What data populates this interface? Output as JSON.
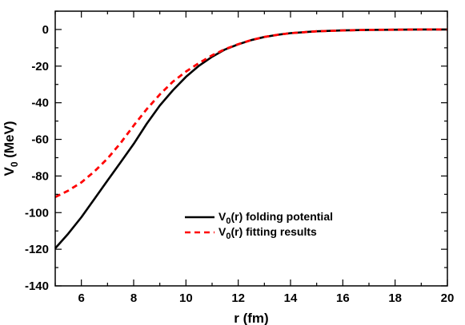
{
  "chart_data": {
    "type": "line",
    "xlabel": "r (fm)",
    "ylabel": {
      "base": "V",
      "sub": "0",
      "rest": " (MeV)"
    },
    "xlim": [
      5,
      20
    ],
    "ylim": [
      -140,
      10
    ],
    "xticks": [
      6,
      8,
      10,
      12,
      14,
      16,
      18,
      20
    ],
    "xtick_labels": [
      "6",
      "8",
      "10",
      "12",
      "14",
      "16",
      "18",
      "20"
    ],
    "yticks": [
      0,
      -20,
      -40,
      -60,
      -80,
      -100,
      -120,
      -140
    ],
    "ytick_labels": [
      "0",
      "-20",
      "-40",
      "-60",
      "-80",
      "-100",
      "-120",
      "-140"
    ],
    "grid": false,
    "legend_position": "lower-right",
    "series": [
      {
        "name": {
          "base": "V",
          "sub": "0",
          "rest": "(r) folding potential"
        },
        "color": "#000000",
        "style": "solid",
        "x": [
          5.0,
          5.5,
          6.0,
          6.5,
          7.0,
          7.5,
          8.0,
          8.5,
          9.0,
          9.5,
          10.0,
          10.5,
          11.0,
          11.5,
          12.0,
          12.5,
          13.0,
          13.5,
          14.0,
          15.0,
          16.0,
          17.0,
          18.0,
          19.0,
          20.0
        ],
        "y": [
          -119.5,
          -111.5,
          -102.5,
          -92.5,
          -82.5,
          -72.5,
          -62.5,
          -51.5,
          -41.5,
          -33.2,
          -25.9,
          -19.8,
          -14.9,
          -10.9,
          -8.1,
          -5.8,
          -4.1,
          -2.9,
          -2.0,
          -1.0,
          -0.5,
          -0.2,
          -0.1,
          0.0,
          0.0
        ]
      },
      {
        "name": {
          "base": "V",
          "sub": "0",
          "rest": "(r) fitting results"
        },
        "color": "#ff0000",
        "style": "dashed",
        "x": [
          5.0,
          5.5,
          6.0,
          6.5,
          7.0,
          7.5,
          8.0,
          8.5,
          9.0,
          9.5,
          10.0,
          10.5,
          11.0,
          11.5,
          12.0,
          12.5,
          13.0,
          13.5,
          14.0,
          15.0,
          16.0,
          17.0,
          18.0,
          19.0,
          20.0
        ],
        "y": [
          -91.5,
          -88.0,
          -83.5,
          -77.5,
          -70.5,
          -62.0,
          -52.5,
          -43.5,
          -35.5,
          -28.5,
          -23.0,
          -18.3,
          -14.1,
          -10.7,
          -8.0,
          -5.8,
          -4.1,
          -2.9,
          -2.0,
          -1.0,
          -0.5,
          -0.2,
          -0.1,
          0.0,
          0.0
        ]
      }
    ]
  }
}
